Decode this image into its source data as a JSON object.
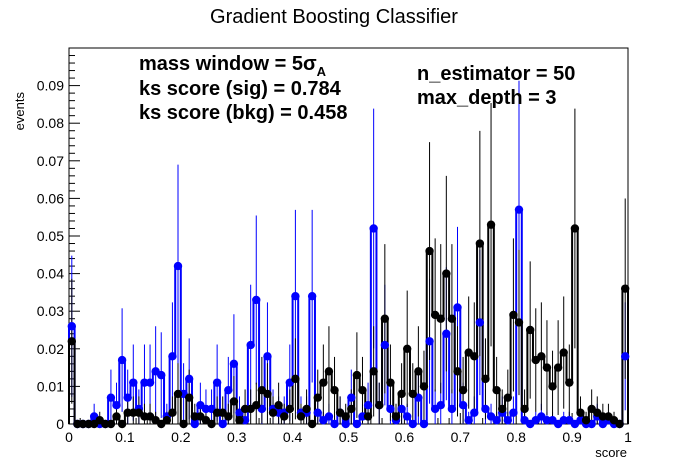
{
  "chart_data": {
    "type": "scatter",
    "title": "Gradient Boosting Classifier",
    "xlabel": "score",
    "ylabel": "events",
    "xlim": [
      0,
      1
    ],
    "ylim": [
      0,
      0.1
    ],
    "x_ticks": [
      {
        "value": 0,
        "label": "0"
      },
      {
        "value": 0.1,
        "label": "0.1"
      },
      {
        "value": 0.2,
        "label": "0.2"
      },
      {
        "value": 0.3,
        "label": "0.3"
      },
      {
        "value": 0.4,
        "label": "0.4"
      },
      {
        "value": 0.5,
        "label": "0.5"
      },
      {
        "value": 0.6,
        "label": "0.6"
      },
      {
        "value": 0.7,
        "label": "0.7"
      },
      {
        "value": 0.8,
        "label": "0.8"
      },
      {
        "value": 0.9,
        "label": "0.9"
      },
      {
        "value": 1.0,
        "label": "1"
      }
    ],
    "y_ticks": [
      {
        "value": 0,
        "label": "0"
      },
      {
        "value": 0.01,
        "label": "0.01"
      },
      {
        "value": 0.02,
        "label": "0.02"
      },
      {
        "value": 0.03,
        "label": "0.03"
      },
      {
        "value": 0.04,
        "label": "0.04"
      },
      {
        "value": 0.05,
        "label": "0.05"
      },
      {
        "value": 0.06,
        "label": "0.06"
      },
      {
        "value": 0.07,
        "label": "0.07"
      },
      {
        "value": 0.08,
        "label": "0.08"
      },
      {
        "value": 0.09,
        "label": "0.09"
      }
    ],
    "grid": false,
    "annotations": {
      "mass_window_main": "mass window = 5σ",
      "mass_window_sub": "A",
      "ks_sig": "ks score (sig) = 0.784",
      "ks_bkg": "ks score (bkg) = 0.458",
      "n_estimator": "n_estimator = 50",
      "max_depth": "max_depth = 3"
    },
    "colors": {
      "signal": "#0000ff",
      "background": "#000000"
    },
    "series": [
      {
        "color": "#0000ff",
        "x": [
          0.005,
          0.015,
          0.025,
          0.035,
          0.045,
          0.055,
          0.065,
          0.075,
          0.085,
          0.095,
          0.105,
          0.115,
          0.125,
          0.135,
          0.145,
          0.155,
          0.165,
          0.175,
          0.185,
          0.195,
          0.205,
          0.215,
          0.225,
          0.235,
          0.245,
          0.255,
          0.265,
          0.275,
          0.285,
          0.295,
          0.305,
          0.315,
          0.325,
          0.335,
          0.345,
          0.355,
          0.365,
          0.375,
          0.385,
          0.395,
          0.405,
          0.415,
          0.425,
          0.435,
          0.445,
          0.455,
          0.465,
          0.475,
          0.485,
          0.495,
          0.505,
          0.515,
          0.525,
          0.535,
          0.545,
          0.555,
          0.565,
          0.575,
          0.585,
          0.595,
          0.605,
          0.615,
          0.625,
          0.635,
          0.645,
          0.655,
          0.665,
          0.675,
          0.685,
          0.695,
          0.705,
          0.715,
          0.725,
          0.735,
          0.745,
          0.755,
          0.765,
          0.775,
          0.785,
          0.795,
          0.805,
          0.815,
          0.825,
          0.835,
          0.845,
          0.855,
          0.865,
          0.875,
          0.885,
          0.895,
          0.905,
          0.915,
          0.925,
          0.935,
          0.945,
          0.955,
          0.965,
          0.975,
          0.985,
          0.995
        ],
        "values": [
          0.026,
          0.0,
          0.0,
          0.0,
          0.002,
          0.0,
          0.0,
          0.007,
          0.005,
          0.017,
          0.007,
          0.011,
          0.004,
          0.011,
          0.011,
          0.014,
          0.013,
          0.002,
          0.018,
          0.042,
          0.008,
          0.012,
          0.0,
          0.005,
          0.004,
          0.004,
          0.011,
          0.0,
          0.009,
          0.016,
          0.003,
          0.001,
          0.021,
          0.033,
          0.004,
          0.018,
          0.004,
          0.003,
          0.003,
          0.011,
          0.034,
          0.003,
          0.003,
          0.034,
          0.003,
          0.001,
          0.002,
          0.0,
          0.003,
          0.0,
          0.007,
          0.0,
          0.002,
          0.005,
          0.052,
          0.005,
          0.021,
          0.004,
          0.001,
          0.004,
          0.002,
          0.0,
          0.007,
          0.0,
          0.022,
          0.004,
          0.005,
          0.024,
          0.004,
          0.031,
          0.005,
          0.001,
          0.003,
          0.027,
          0.004,
          0.002,
          0.001,
          0.003,
          0.001,
          0.003,
          0.057,
          0.001,
          0.0,
          0.001,
          0.002,
          0.001,
          0.001,
          0.0,
          0.001,
          0.001,
          0.0,
          0.001,
          0.0,
          0.0,
          0.002,
          0.0,
          0.001,
          0.0,
          0.0,
          0.018
        ]
      },
      {
        "color": "#000000",
        "x": [
          0.005,
          0.015,
          0.025,
          0.035,
          0.045,
          0.055,
          0.065,
          0.075,
          0.085,
          0.095,
          0.105,
          0.115,
          0.125,
          0.135,
          0.145,
          0.155,
          0.165,
          0.175,
          0.185,
          0.195,
          0.205,
          0.215,
          0.225,
          0.235,
          0.245,
          0.255,
          0.265,
          0.275,
          0.285,
          0.295,
          0.305,
          0.315,
          0.325,
          0.335,
          0.345,
          0.355,
          0.365,
          0.375,
          0.385,
          0.395,
          0.405,
          0.415,
          0.425,
          0.435,
          0.445,
          0.455,
          0.465,
          0.475,
          0.485,
          0.495,
          0.505,
          0.515,
          0.525,
          0.535,
          0.545,
          0.555,
          0.565,
          0.575,
          0.585,
          0.595,
          0.605,
          0.615,
          0.625,
          0.635,
          0.645,
          0.655,
          0.665,
          0.675,
          0.685,
          0.695,
          0.705,
          0.715,
          0.725,
          0.735,
          0.745,
          0.755,
          0.765,
          0.775,
          0.785,
          0.795,
          0.805,
          0.815,
          0.825,
          0.835,
          0.845,
          0.855,
          0.865,
          0.875,
          0.885,
          0.895,
          0.905,
          0.915,
          0.925,
          0.935,
          0.945,
          0.955,
          0.965,
          0.975,
          0.985,
          0.995
        ],
        "values": [
          0.022,
          0.0,
          0.0,
          0.0,
          0.0,
          0.001,
          0.0,
          0.0,
          0.002,
          0.0,
          0.003,
          0.003,
          0.003,
          0.002,
          0.002,
          0.001,
          0.0,
          0.001,
          0.003,
          0.008,
          0.0,
          0.007,
          0.002,
          0.002,
          0.001,
          0.0,
          0.003,
          0.003,
          0.002,
          0.006,
          0.001,
          0.004,
          0.004,
          0.005,
          0.009,
          0.008,
          0.003,
          0.005,
          0.002,
          0.004,
          0.012,
          0.002,
          0.004,
          0.0,
          0.007,
          0.011,
          0.014,
          0.009,
          0.003,
          0.002,
          0.004,
          0.013,
          0.009,
          0.002,
          0.014,
          0.005,
          0.028,
          0.011,
          0.002,
          0.008,
          0.02,
          0.008,
          0.014,
          0.01,
          0.046,
          0.029,
          0.028,
          0.04,
          0.028,
          0.014,
          0.009,
          0.019,
          0.018,
          0.048,
          0.012,
          0.053,
          0.009,
          0.004,
          0.007,
          0.029,
          0.027,
          0.004,
          0.025,
          0.017,
          0.018,
          0.015,
          0.01,
          0.015,
          0.019,
          0.011,
          0.052,
          0.003,
          0.001,
          0.004,
          0.003,
          0.002,
          0.002,
          0.001,
          0.0,
          0.036
        ]
      }
    ]
  }
}
